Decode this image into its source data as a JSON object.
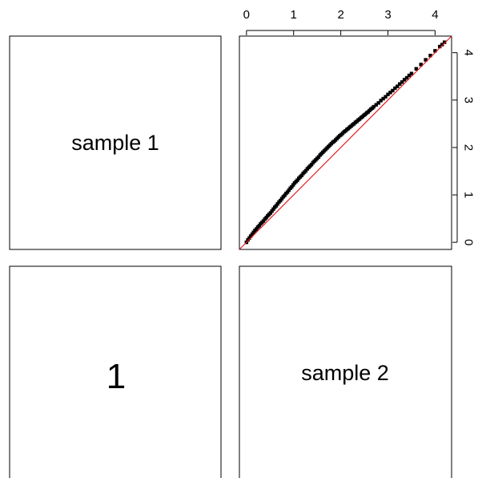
{
  "panels": {
    "top_left_label": "sample 1",
    "bottom_left_label": "1",
    "bottom_right_label": "sample 2"
  },
  "chart_data": {
    "type": "scatter",
    "x_ticks": [
      "0",
      "1",
      "2",
      "3",
      "4"
    ],
    "y_ticks": [
      "0",
      "1",
      "2",
      "3",
      "4"
    ],
    "xlim": [
      -0.15,
      4.35
    ],
    "ylim": [
      -0.15,
      4.35
    ],
    "reference_line": {
      "intercept": 0,
      "slope": 1,
      "color": "#e41a1c"
    },
    "point_color": "#000000",
    "series": [
      {
        "x": [
          0.0,
          0.03,
          0.06,
          0.09,
          0.12,
          0.15,
          0.18,
          0.21,
          0.24,
          0.27,
          0.3,
          0.33,
          0.36,
          0.39,
          0.42,
          0.45,
          0.48,
          0.51,
          0.54,
          0.57,
          0.6,
          0.63,
          0.66,
          0.69,
          0.72,
          0.75,
          0.78,
          0.81,
          0.84,
          0.87,
          0.9,
          0.93,
          0.96,
          0.99,
          1.02,
          1.05,
          1.08,
          1.11,
          1.14,
          1.17,
          1.2,
          1.23,
          1.26,
          1.29,
          1.32,
          1.35,
          1.38,
          1.41,
          1.44,
          1.47,
          1.5,
          1.53,
          1.56,
          1.59,
          1.62,
          1.65,
          1.68,
          1.71,
          1.74,
          1.77,
          1.8,
          1.83,
          1.86,
          1.89,
          1.92,
          1.95,
          1.98,
          2.01,
          2.04,
          2.07,
          2.1,
          2.13,
          2.16,
          2.19,
          2.22,
          2.25,
          2.28,
          2.31,
          2.34,
          2.37,
          2.4,
          2.43,
          2.46,
          2.49,
          2.52,
          2.55,
          2.58,
          2.61,
          2.64,
          2.67,
          2.7,
          2.75,
          2.8,
          2.85,
          2.9,
          2.95,
          3.0,
          3.05,
          3.1,
          3.15,
          3.2,
          3.25,
          3.3,
          3.35,
          3.4,
          3.45,
          3.5,
          3.6,
          3.7,
          3.8,
          3.9,
          4.0,
          4.1,
          4.15,
          4.2
        ],
        "y": [
          0.0,
          0.05,
          0.09,
          0.13,
          0.17,
          0.21,
          0.25,
          0.28,
          0.32,
          0.35,
          0.39,
          0.42,
          0.45,
          0.49,
          0.52,
          0.56,
          0.59,
          0.62,
          0.66,
          0.7,
          0.74,
          0.77,
          0.81,
          0.85,
          0.88,
          0.92,
          0.96,
          0.99,
          1.03,
          1.06,
          1.1,
          1.14,
          1.17,
          1.21,
          1.25,
          1.28,
          1.31,
          1.35,
          1.38,
          1.41,
          1.45,
          1.48,
          1.51,
          1.55,
          1.58,
          1.61,
          1.64,
          1.68,
          1.71,
          1.74,
          1.77,
          1.8,
          1.84,
          1.87,
          1.9,
          1.93,
          1.96,
          1.99,
          2.02,
          2.05,
          2.08,
          2.11,
          2.13,
          2.16,
          2.19,
          2.22,
          2.25,
          2.27,
          2.3,
          2.33,
          2.35,
          2.38,
          2.4,
          2.43,
          2.45,
          2.48,
          2.5,
          2.53,
          2.55,
          2.58,
          2.6,
          2.63,
          2.65,
          2.68,
          2.7,
          2.73,
          2.75,
          2.78,
          2.81,
          2.83,
          2.86,
          2.9,
          2.94,
          2.99,
          3.03,
          3.07,
          3.12,
          3.16,
          3.2,
          3.25,
          3.29,
          3.34,
          3.38,
          3.43,
          3.47,
          3.52,
          3.56,
          3.66,
          3.75,
          3.85,
          3.94,
          4.04,
          4.13,
          4.17,
          4.22
        ]
      }
    ]
  }
}
